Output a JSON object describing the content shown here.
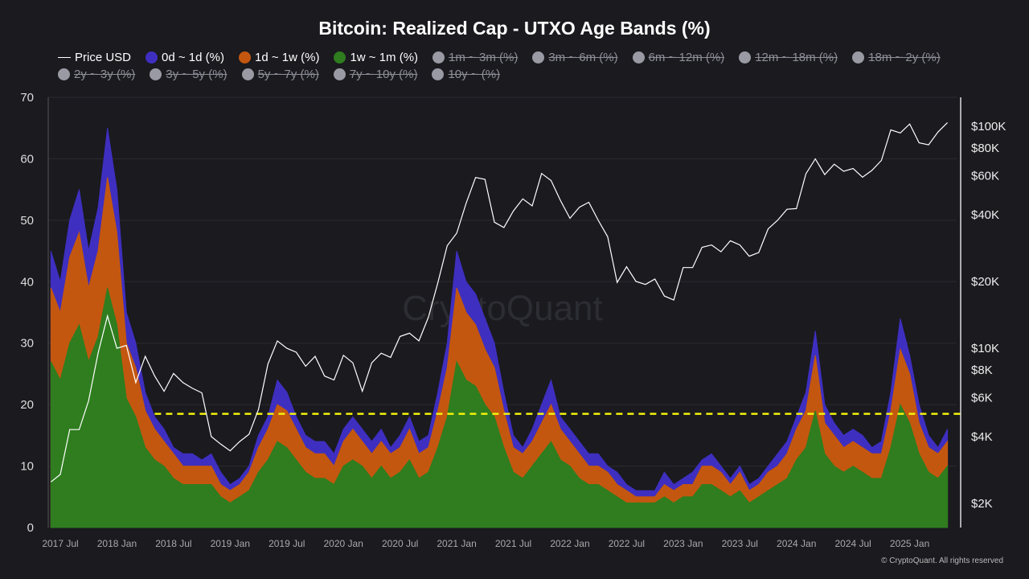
{
  "chart_data": {
    "type": "area",
    "title": "Bitcoin: Realized Cap - UTXO Age Bands (%)",
    "stacked": true,
    "x_start": "2017-06",
    "x_frequency": "monthly",
    "x_ticks": [
      "2017 Jul",
      "2018 Jan",
      "2018 Jul",
      "2019 Jan",
      "2019 Jul",
      "2020 Jan",
      "2020 Jul",
      "2021 Jan",
      "2021 Jul",
      "2022 Jan",
      "2022 Jul",
      "2023 Jan",
      "2023 Jul",
      "2024 Jan",
      "2024 Jul",
      "2025 Jan"
    ],
    "y_left": {
      "range": [
        0,
        70
      ],
      "ticks": [
        "0",
        "10",
        "20",
        "30",
        "40",
        "50",
        "60",
        "70"
      ]
    },
    "y_right": {
      "scale": "log",
      "range": [
        1500,
        130000
      ],
      "ticks": [
        {
          "v": 2000,
          "label": "$2K"
        },
        {
          "v": 4000,
          "label": "$4K"
        },
        {
          "v": 6000,
          "label": "$6K"
        },
        {
          "v": 8000,
          "label": "$8K"
        },
        {
          "v": 10000,
          "label": "$10K"
        },
        {
          "v": 20000,
          "label": "$20K"
        },
        {
          "v": 40000,
          "label": "$40K"
        },
        {
          "v": 60000,
          "label": "$60K"
        },
        {
          "v": 80000,
          "label": "$80K"
        },
        {
          "v": 100000,
          "label": "$100K"
        }
      ]
    },
    "grid": true,
    "legend_placement": "top",
    "series": [
      {
        "name": "1w ~ 1m (%)",
        "color": "#2f7d1f",
        "active": true,
        "values": [
          27,
          24,
          30,
          33,
          27,
          31,
          39,
          33,
          21,
          18,
          13,
          11,
          10,
          8,
          7,
          7,
          7,
          7,
          5,
          4,
          5,
          6,
          9,
          11,
          14,
          13,
          11,
          9,
          8,
          8,
          7,
          10,
          11,
          10,
          8,
          10,
          8,
          9,
          11,
          8,
          9,
          13,
          18,
          27,
          24,
          23,
          20,
          18,
          13,
          9,
          8,
          10,
          12,
          14,
          11,
          10,
          8,
          7,
          7,
          6,
          5,
          4,
          4,
          4,
          4,
          5,
          4,
          5,
          5,
          7,
          7,
          6,
          5,
          6,
          4,
          5,
          6,
          7,
          8,
          11,
          13,
          19,
          12,
          10,
          9,
          10,
          9,
          8,
          8,
          13,
          20,
          17,
          12,
          9,
          8,
          10
        ]
      },
      {
        "name": "1d ~ 1w (%)",
        "color": "#c4570f",
        "active": true,
        "values": [
          12,
          11,
          14,
          15,
          12,
          14,
          18,
          15,
          9,
          8,
          6,
          5,
          4,
          4,
          3,
          3,
          3,
          3,
          2,
          2,
          2,
          3,
          4,
          5,
          6,
          6,
          5,
          4,
          4,
          4,
          3,
          4,
          5,
          4,
          4,
          4,
          4,
          4,
          5,
          4,
          4,
          6,
          8,
          12,
          11,
          10,
          9,
          8,
          6,
          4,
          4,
          4,
          5,
          6,
          5,
          4,
          4,
          3,
          3,
          3,
          2,
          2,
          1,
          1,
          1,
          2,
          2,
          2,
          2,
          3,
          3,
          3,
          2,
          3,
          2,
          2,
          3,
          3,
          4,
          5,
          6,
          9,
          5,
          5,
          4,
          4,
          4,
          4,
          4,
          6,
          9,
          8,
          5,
          4,
          4,
          4
        ]
      },
      {
        "name": "0d ~ 1d (%)",
        "color": "#3f2fc0",
        "active": true,
        "values": [
          6,
          5,
          6,
          7,
          6,
          7,
          8,
          7,
          5,
          4,
          3,
          2,
          2,
          1,
          2,
          2,
          1,
          2,
          2,
          1,
          1,
          1,
          2,
          2,
          4,
          3,
          2,
          2,
          2,
          2,
          2,
          2,
          2,
          2,
          2,
          2,
          1,
          2,
          2,
          2,
          2,
          3,
          4,
          6,
          5,
          5,
          5,
          4,
          3,
          2,
          1,
          2,
          3,
          4,
          2,
          2,
          2,
          2,
          2,
          1,
          2,
          1,
          1,
          1,
          1,
          2,
          1,
          1,
          2,
          1,
          2,
          1,
          1,
          1,
          1,
          1,
          1,
          2,
          2,
          2,
          3,
          4,
          3,
          2,
          2,
          2,
          2,
          1,
          2,
          3,
          5,
          3,
          3,
          2,
          1,
          2
        ]
      },
      {
        "name": "Price USD",
        "color": "#ffffff",
        "axis": "right",
        "active": true,
        "values": [
          2500,
          2700,
          4300,
          4300,
          5800,
          9500,
          14000,
          10000,
          10300,
          7000,
          9200,
          7500,
          6400,
          7700,
          7000,
          6600,
          6300,
          4000,
          3700,
          3450,
          3800,
          4100,
          5300,
          8500,
          10800,
          10000,
          9600,
          8300,
          9200,
          7500,
          7200,
          9300,
          8600,
          6400,
          8600,
          9500,
          9100,
          11300,
          11700,
          10800,
          13800,
          19700,
          29000,
          33000,
          45000,
          58800,
          57700,
          37000,
          35000,
          41500,
          47100,
          43800,
          61300,
          57000,
          46300,
          38500,
          43200,
          45500,
          37700,
          31800,
          19800,
          23300,
          20000,
          19400,
          20500,
          17200,
          16500,
          23100,
          23100,
          28500,
          29200,
          27200,
          30500,
          29200,
          26000,
          27000,
          34500,
          37700,
          42300,
          42600,
          61100,
          71300,
          60600,
          67500,
          62700,
          64600,
          59000,
          63300,
          70200,
          96400,
          93400,
          102400,
          84300,
          82500,
          94200,
          104000
        ]
      }
    ],
    "reference_line": {
      "y": 18.5,
      "from": "2018-05",
      "color": "#f2f20a",
      "style": "dashed"
    }
  },
  "legend": {
    "row1": [
      {
        "label": "Price USD",
        "type": "line",
        "color": "#ffffff",
        "active": true
      },
      {
        "label": "0d ~ 1d (%)",
        "color": "#3f2fc0",
        "active": true
      },
      {
        "label": "1d ~ 1w (%)",
        "color": "#c4570f",
        "active": true
      },
      {
        "label": "1w ~ 1m (%)",
        "color": "#2f7d1f",
        "active": true
      },
      {
        "label": "1m ~ 3m (%)",
        "color": "#9a9aa4",
        "active": false
      },
      {
        "label": "3m ~ 6m (%)",
        "color": "#9a9aa4",
        "active": false
      },
      {
        "label": "6m ~ 12m (%)",
        "color": "#9a9aa4",
        "active": false
      },
      {
        "label": "12m ~ 18m (%)",
        "color": "#9a9aa4",
        "active": false
      },
      {
        "label": "18m ~ 2y (%)",
        "color": "#9a9aa4",
        "active": false
      }
    ],
    "row2": [
      {
        "label": "2y ~ 3y (%)",
        "color": "#9a9aa4",
        "active": false
      },
      {
        "label": "3y ~ 5y (%)",
        "color": "#9a9aa4",
        "active": false
      },
      {
        "label": "5y ~ 7y (%)",
        "color": "#9a9aa4",
        "active": false
      },
      {
        "label": "7y ~ 10y (%)",
        "color": "#9a9aa4",
        "active": false
      },
      {
        "label": "10y ~ (%)",
        "color": "#9a9aa4",
        "active": false
      }
    ]
  },
  "watermark": "CryptoQuant",
  "copyright": "© CryptoQuant. All rights reserved"
}
